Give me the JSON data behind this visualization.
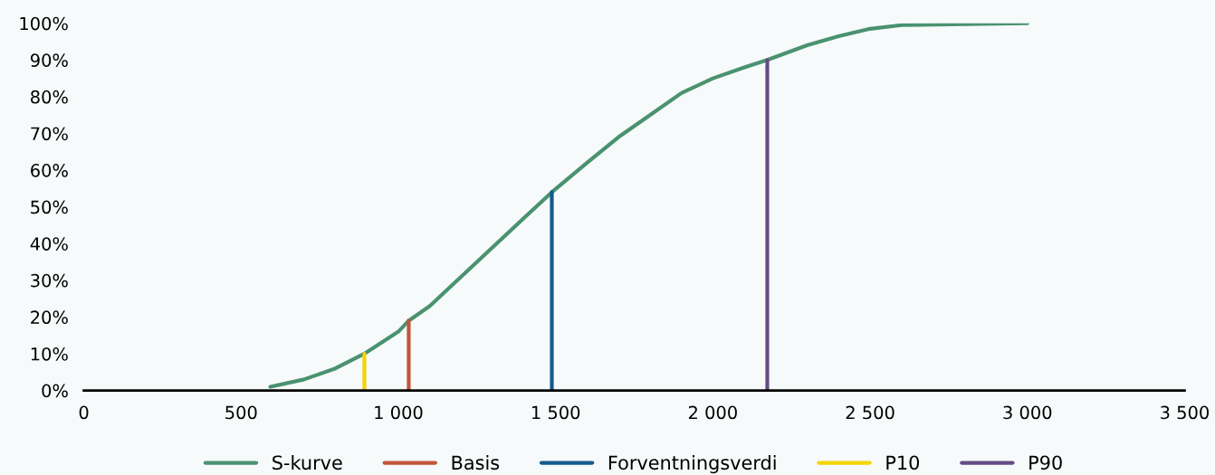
{
  "chart_data": {
    "type": "line",
    "xlim": [
      0,
      3500
    ],
    "xticks": [
      0,
      500,
      {
        "value": 1000,
        "label": "1 000"
      },
      {
        "value": 1500,
        "label": "1 500"
      },
      {
        "value": 2000,
        "label": "2 000"
      },
      {
        "value": 2500,
        "label": "2 500"
      },
      {
        "value": 3000,
        "label": "3 000"
      },
      {
        "value": 3500,
        "label": "3 500"
      }
    ],
    "ylim": [
      0,
      100
    ],
    "yticks": [
      {
        "value": 0,
        "label": "0%"
      },
      {
        "value": 10,
        "label": "10%"
      },
      {
        "value": 20,
        "label": "20%"
      },
      {
        "value": 30,
        "label": "30%"
      },
      {
        "value": 40,
        "label": "40%"
      },
      {
        "value": 50,
        "label": "50%"
      },
      {
        "value": 60,
        "label": "60%"
      },
      {
        "value": 70,
        "label": "70%"
      },
      {
        "value": 80,
        "label": "80%"
      },
      {
        "value": 90,
        "label": "90%"
      },
      {
        "value": 100,
        "label": "100%"
      }
    ],
    "grid": false,
    "legend": "bottom",
    "series": [
      {
        "name": "S-kurve",
        "color": "#4a9270",
        "x": [
          593,
          700,
          800,
          892,
          1000,
          1033,
          1100,
          1200,
          1300,
          1400,
          1488,
          1600,
          1700,
          1800,
          1900,
          2000,
          2100,
          2173,
          2300,
          2400,
          2500,
          2600,
          3000
        ],
        "values": [
          1,
          3,
          6,
          10,
          16,
          19,
          23,
          31,
          39,
          47,
          54,
          62,
          69,
          75,
          81,
          85,
          88,
          90,
          94,
          96.5,
          98.5,
          99.5,
          100
        ]
      },
      {
        "name": "Basis",
        "color": "#c0553a",
        "x": [
          1033,
          1033
        ],
        "values": [
          0,
          19
        ]
      },
      {
        "name": "Forventningsverdi",
        "color": "#125a8c",
        "x": [
          1488,
          1488
        ],
        "values": [
          0,
          54
        ]
      },
      {
        "name": "P10",
        "color": "#f5d400",
        "x": [
          892,
          892
        ],
        "values": [
          0,
          10
        ]
      },
      {
        "name": "P90",
        "color": "#654c85",
        "x": [
          2173,
          2173
        ],
        "values": [
          0,
          90
        ]
      }
    ]
  }
}
